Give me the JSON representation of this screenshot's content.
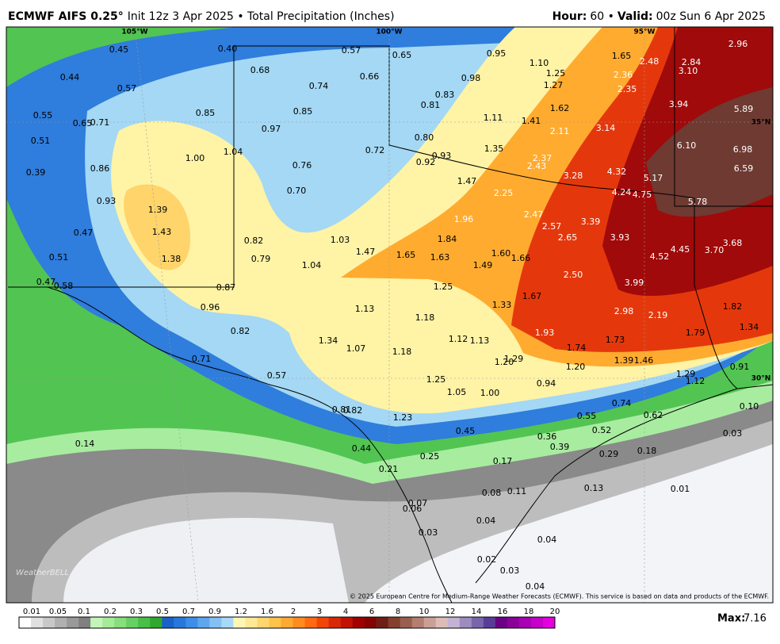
{
  "header": {
    "model": "ECMWF AIFS 0.25°",
    "subtitle": "Init 12z 3 Apr 2025 • Total Precipitation (Inches)",
    "hour_label": "Hour:",
    "hour": "60 •",
    "valid_label": "Valid:",
    "valid": "00z Sun 6 Apr 2025"
  },
  "map": {
    "graticule": [
      "105°W",
      "100°W",
      "95°W",
      "35°N",
      "30°N"
    ],
    "labels": [
      "0.45",
      "0.40",
      "0.57",
      "0.65",
      "0.95",
      "1.10",
      "1.65",
      "2.48",
      "2.84",
      "2.96",
      "0.44",
      "0.68",
      "0.66",
      "0.98",
      "1.25",
      "1.27",
      "2.36",
      "3.10",
      "0.57",
      "0.74",
      "0.83",
      "2.35",
      "0.81",
      "0.85",
      "0.85",
      "1.11",
      "1.41",
      "1.62",
      "3.94",
      "5.89",
      "0.55",
      "0.65",
      "0.71",
      "0.97",
      "2.11",
      "3.14",
      "0.51",
      "0.80",
      "1.35",
      "6.10",
      "6.98",
      "1.04",
      "0.72",
      "0.93",
      "0.92",
      "2.37",
      "1.00",
      "0.86",
      "0.76",
      "2.43",
      "4.32",
      "6.59",
      "0.39",
      "3.28",
      "5.17",
      "1.47",
      "0.70",
      "2.25",
      "4.24",
      "4.75",
      "0.93",
      "5.78",
      "1.39",
      "2.47",
      "1.96",
      "3.39",
      "0.47",
      "1.43",
      "2.57",
      "1.84",
      "2.65",
      "3.93",
      "3.68",
      "0.82",
      "1.03",
      "1.47",
      "1.65",
      "1.63",
      "1.60",
      "1.66",
      "4.45",
      "3.70",
      "0.51",
      "1.38",
      "0.79",
      "4.52",
      "1.04",
      "1.49",
      "2.50",
      "0.47",
      "0.58",
      "0.87",
      "1.25",
      "3.99",
      "1.67",
      "1.33",
      "0.96",
      "1.13",
      "1.82",
      "2.98",
      "2.19",
      "1.18",
      "1.34",
      "0.82",
      "1.93",
      "1.79",
      "1.34",
      "1.12",
      "1.13",
      "1.73",
      "1.07",
      "1.74",
      "1.18",
      "0.71",
      "1.29",
      "1.20",
      "1.39",
      "1.46",
      "1.20",
      "0.91",
      "1.29",
      "0.57",
      "1.25",
      "0.94",
      "1.12",
      "1.05",
      "1.00",
      "0.74",
      "0.10",
      "0.81",
      "0.82",
      "0.55",
      "0.62",
      "1.23",
      "0.45",
      "0.52",
      "0.03",
      "0.36",
      "0.14",
      "0.44",
      "0.39",
      "0.29",
      "0.18",
      "0.25",
      "0.17",
      "0.21",
      "0.08",
      "0.11",
      "0.13",
      "0.01",
      "0.07",
      "0.06",
      "0.04",
      "0.03",
      "0.04",
      "0.02",
      "0.03",
      "0.04"
    ],
    "watermark": "WeatherBELL",
    "credit": "© 2025 European Centre for Medium-Range Weather Forecasts (ECMWF). This service is based on data and products of the ECMWF."
  },
  "legend": {
    "ticks": [
      "0.01",
      "0.05",
      "0.1",
      "0.2",
      "0.3",
      "0.5",
      "0.7",
      "0.9",
      "1.2",
      "1.6",
      "2",
      "3",
      "4",
      "6",
      "8",
      "10",
      "12",
      "14",
      "16",
      "18",
      "20"
    ],
    "colors": [
      "#ffffff",
      "#e0e0e0",
      "#c8c8c8",
      "#b0b0b0",
      "#999999",
      "#808080",
      "#c4f5b8",
      "#a6eb98",
      "#86de7c",
      "#66d064",
      "#48bf48",
      "#2ea82e",
      "#1a62c8",
      "#2878dc",
      "#3c8fe8",
      "#5ea6ee",
      "#84c0f4",
      "#a8d8fa",
      "#fff6b4",
      "#ffe896",
      "#ffd66e",
      "#ffc24c",
      "#ffa832",
      "#ff8c1e",
      "#ff6a12",
      "#f0460a",
      "#d82808",
      "#c01202",
      "#a00000",
      "#840404",
      "#6e1e16",
      "#84402f",
      "#9a5e4e",
      "#b47e72",
      "#caa096",
      "#dcbcb6",
      "#c4b2d2",
      "#9e8cc0",
      "#7866ac",
      "#5a3c98",
      "#6c0084",
      "#8a0098",
      "#a800b2",
      "#c600c8",
      "#e400dc"
    ],
    "max_label": "Max:",
    "max": "7.16"
  }
}
